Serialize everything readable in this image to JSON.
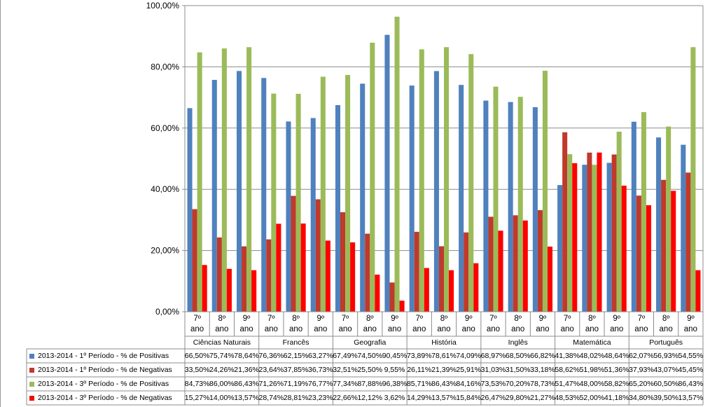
{
  "chart_data": {
    "type": "bar",
    "categories": [
      "7º ano",
      "8º ano",
      "9º ano",
      "7º ano",
      "8º ano",
      "9º ano",
      "7º ano",
      "8º ano",
      "9º ano",
      "7º ano",
      "8º ano",
      "9º ano",
      "7º ano",
      "8º ano",
      "9º ano",
      "7º ano",
      "8º ano",
      "9º ano",
      "7º ano",
      "8º ano",
      "9º ano"
    ],
    "groups": [
      "Ciências Naturais",
      "Francês",
      "Geografia",
      "História",
      "Inglês",
      "Matemática",
      "Português"
    ],
    "ylim": [
      0,
      100
    ],
    "yticks": [
      {
        "value": 0,
        "label": "0,00%"
      },
      {
        "value": 20,
        "label": "20,00%"
      },
      {
        "value": 40,
        "label": "40,00%"
      },
      {
        "value": 60,
        "label": "60,00%"
      },
      {
        "value": 80,
        "label": "80,00%"
      },
      {
        "value": 100,
        "label": "100,00%"
      }
    ],
    "grid": true,
    "series": [
      {
        "name": "2013-2014 - 1º Período - % de Positivas",
        "color": "#4f81bd",
        "values": [
          66.5,
          75.74,
          78.64,
          76.36,
          62.15,
          63.27,
          67.49,
          74.5,
          90.45,
          73.89,
          78.61,
          74.09,
          68.97,
          68.5,
          66.82,
          41.38,
          48.02,
          48.64,
          62.07,
          56.93,
          54.55
        ],
        "value_labels": [
          "66,50%",
          "75,74%",
          "78,64%",
          "76,36%",
          "62,15%",
          "63,27%",
          "67,49%",
          "74,50%",
          "90,45%",
          "73,89%",
          "78,61%",
          "74,09%",
          "68,97%",
          "68,50%",
          "66,82%",
          "41,38%",
          "48,02%",
          "48,64%",
          "62,07%",
          "56,93%",
          "54,55%"
        ]
      },
      {
        "name": "2013-2014 - 1º Período - % de Negativas",
        "color": "#c0392b",
        "values": [
          33.5,
          24.26,
          21.36,
          23.64,
          37.85,
          36.73,
          32.51,
          25.5,
          9.55,
          26.11,
          21.39,
          25.91,
          31.03,
          31.5,
          33.18,
          58.62,
          51.98,
          51.36,
          37.93,
          43.07,
          45.45
        ],
        "value_labels": [
          "33,50%",
          "24,26%",
          "21,36%",
          "23,64%",
          "37,85%",
          "36,73%",
          "32,51%",
          "25,50%",
          "9,55%",
          "26,11%",
          "21,39%",
          "25,91%",
          "31,03%",
          "31,50%",
          "33,18%",
          "58,62%",
          "51,98%",
          "51,36%",
          "37,93%",
          "43,07%",
          "45,45%"
        ]
      },
      {
        "name": "2013-2014 - 3º Período - % de Positivas",
        "color": "#9bbb59",
        "values": [
          84.73,
          86.0,
          86.43,
          71.26,
          71.19,
          76.77,
          77.34,
          87.88,
          96.38,
          85.71,
          86.43,
          84.16,
          73.53,
          70.2,
          78.73,
          51.47,
          48.0,
          58.82,
          65.2,
          60.5,
          86.43
        ],
        "value_labels": [
          "84,73%",
          "86,00%",
          "86,43%",
          "71,26%",
          "71,19%",
          "76,77%",
          "77,34%",
          "87,88%",
          "96,38%",
          "85,71%",
          "86,43%",
          "84,16%",
          "73,53%",
          "70,20%",
          "78,73%",
          "51,47%",
          "48,00%",
          "58,82%",
          "65,20%",
          "60,50%",
          "86,43%"
        ]
      },
      {
        "name": "2013-2014 - 3º Período - % de Negativas",
        "color": "#ff0000",
        "values": [
          15.27,
          14.0,
          13.57,
          28.74,
          28.81,
          23.23,
          22.66,
          12.12,
          3.62,
          14.29,
          13.57,
          15.84,
          26.47,
          29.8,
          21.27,
          48.53,
          52.0,
          41.18,
          34.8,
          39.5,
          13.57
        ],
        "value_labels": [
          "15,27%",
          "14,00%",
          "13,57%",
          "28,74%",
          "28,81%",
          "23,23%",
          "22,66%",
          "12,12%",
          "3,62%",
          "14,29%",
          "13,57%",
          "15,84%",
          "26,47%",
          "29,80%",
          "21,27%",
          "48,53%",
          "52,00%",
          "41,18%",
          "34,80%",
          "39,50%",
          "13,57%"
        ]
      }
    ]
  }
}
